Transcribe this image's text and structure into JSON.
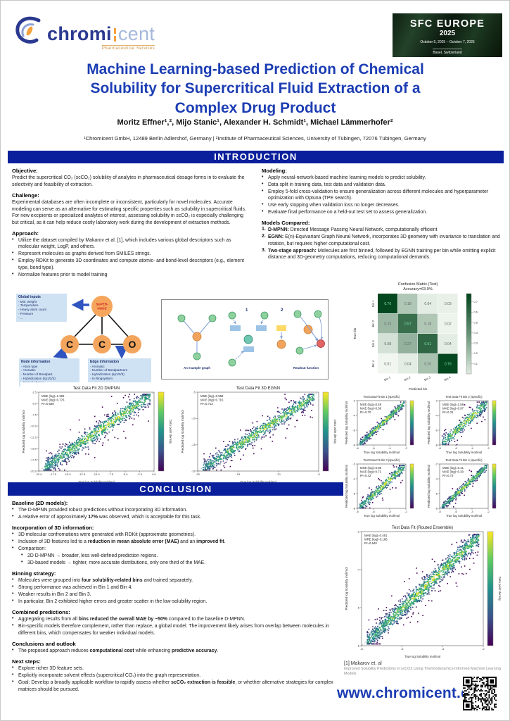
{
  "header": {
    "logo": {
      "brand_main": "chromi",
      "brand_accent": "cent",
      "tagline": "Pharmaceutical Services"
    },
    "badge": {
      "name": "SFC EUROPE",
      "year": "2025",
      "dates": "October 5, 2025 – October 7, 2025",
      "location": "Basel, Switzerland"
    },
    "title": "Machine Learning-based Prediction of Chemical Solubility for Supercritical Fluid Extraction of a Complex Drug Product",
    "authors": "Moritz Effner¹,², Mijo Stanic¹, Alexander H. Schmidt¹, Michael Lämmerhofer²",
    "affiliations": "¹Chromicent GmbH, 12489 Berlin Adlershof, Germany | ²Institute of Pharmaceutical Sciences, University of Tübingen, 72076 Tübingen, Germany"
  },
  "sections": {
    "introduction": "INTRODUCTION",
    "conclusion": "CONCLUSION"
  },
  "introduction": {
    "left": [
      {
        "heading": "Objective:",
        "paragraphs": [
          "Predict the supercritical CO₂ (scCO₂) solubility of analytes  in pharmaceutical dosage forms in to evaluate the selectivity and feasibility of extraction."
        ]
      },
      {
        "heading": "Challenge:",
        "paragraphs": [
          "Experimental databases are often incomplete or inconsistent, particularly for novel molecules. Accurate modeling can serve as an alternative for estimating specific properties such as solubility in supercritical fluids. For new excipients or specialized analytes of interest, assessing solubility in scCO₂ is especially challenging but critical, as it can help reduce costly laboratory work during the development of extraction methods."
        ]
      },
      {
        "heading": "Approach:",
        "bullets": [
          "Utilize the dataset compiled by Makarov et al. [1], which includes various global descriptors such as molecular weight, LogP, and others.",
          "Represent molecules as graphs derived from SMILES strings.",
          "Employ RDKit to generate 3D coordinates and compute atomic- and bond-level descriptors (e.g., element type, bond type).",
          "Normalize features prior to model training"
        ]
      }
    ],
    "right": [
      {
        "heading": "Modeling:",
        "bullets": [
          "Apply neural-network-based machine learning models to predict solubility.",
          "Data split in training data, test data and validation data.",
          "Employ 5-fold cross-validation to ensure generalization across different molecules and hyperparameter optimization with Optuna (TPE search).",
          "Use early stopping when validation loss no longer decreases.",
          "Evaluate final performance on a held-out test set to assess generalization."
        ]
      },
      {
        "heading": "Models Compared:",
        "ordered": true,
        "bullets": [
          "**D-MPNN:** Directed Message Passing Neural Network, computationally efficient",
          "**EGNN:** E(n)-Equivariant Graph Neural Network, incorporates 3D geometry with invariance to translation and rotation, but requires higher computational cost.",
          "**Two-stage approach:** Molecules are first binned, followed by EGNN training per bin while omitting explicit distance and 3D-geometry computations, reducing computational demands."
        ]
      }
    ]
  },
  "diagram": {
    "global_inputs": {
      "title": "Global inputs",
      "items": [
        "Mol. weight",
        "Temperature",
        "Heavy atom count",
        "Pressure",
        "..."
      ]
    },
    "supernode_line1": "SUPER-",
    "supernode_line2": "NODE",
    "atoms": [
      "C",
      "C",
      "O"
    ],
    "node_info": {
      "title": "Node information",
      "items": [
        "Atom type",
        "Aromatic",
        "Number of Bondpart.",
        "Hybridization (sp1/2/3)",
        "Formal charge"
      ]
    },
    "edge_info": {
      "title": "Edge information",
      "items": [
        "Aromatic",
        "Number of Bondpartners",
        "Hybridization (sp1/2/3)",
        "In Ringsystem"
      ]
    },
    "example_graph_caption": "An example graph",
    "readout_caption": "Readout function",
    "step1": "1",
    "step2": "2"
  },
  "conclusion": {
    "blocks": [
      {
        "heading": "Baseline (2D models):",
        "bullets": [
          "The D-MPNN provided robust predictions without incorporating 3D information.",
          "A relative error of approximately **17%** was observed, which is acceptable for this task."
        ]
      },
      {
        "heading": "Incorporation of 3D information:",
        "bullets": [
          "3D molecular confromations were generated with RDKit (approximate geometries).",
          "Inclusion of 3D features led to a **reduction in mean absolute error (MAE)** and an **improved fit**.",
          {
            "text": "Comparison:",
            "sub": [
              "2D D-MPNN → broader, less well-defined prediction regions.",
              "3D-based models → tighter, more accurate distributions, only one third of the MAE."
            ]
          }
        ]
      },
      {
        "heading": "Binning strategy:",
        "bullets": [
          "Molecules were grouped into **four solubility-related bins** and trained separately.",
          "Strong performance was achieved in Bin 1 and Bin 4.",
          "Weaker results in Bin 2 and Bin 3.",
          "In particular, Bin 2 exhibited higher errors and greater scatter in the low-solubility region."
        ]
      },
      {
        "heading": "Combined predictions:",
        "bullets": [
          "Aggregating results from all **bins reduced the overall MAE by ~50%** compared to the baseline D-MPNN.",
          "Bin-specific models therefore complement, rather than replace, a global model. The improvement likely arises from overlap between molecules in different bins, which compensates for weaker individual models."
        ]
      },
      {
        "heading": "Conclusions and outlook",
        "bullets": [
          "The proposed approach reduces **computational cost** while enhancing **predictive accuracy**."
        ]
      },
      {
        "heading": "Next steps:",
        "bullets": [
          "Explore richer 3D feature sets.",
          "Explicitly incorporate solvent effects (supercritical CO₂) into the graph representation.",
          "Goal: Develop a broadly applicable workflow to rapidly assess whether **scCO₂ extraction is feasible**, or whether alternative strategies for complex matrices should be pursued."
        ]
      }
    ]
  },
  "footer": {
    "reference_title": "[1] Makarov et. al",
    "reference_text": "Improved Solubility Predictions in scCO2 Using Thermodynamics-Informed Machine Learning Models",
    "website": "www.chromicent.de"
  },
  "colors": {
    "accent_blue": "#1c3db3",
    "bar_navy": "#0a1f9b",
    "logo_navy": "#2b3990",
    "logo_orange": "#f6a13c",
    "matrix_green": "#00441b"
  },
  "chart_data": {
    "confusion": {
      "type": "heatmap",
      "title": "Confusion Matrix (Test)",
      "subtitle": "Accuracy=63.9%",
      "xlabel": "Predicted bin",
      "ylabel": "True bin",
      "categories": [
        "Bin 1",
        "Bin 2",
        "Bin 3",
        "Bin 4"
      ],
      "values": [
        [
          0.76,
          0.18,
          0.04,
          0.03
        ],
        [
          0.24,
          0.57,
          0.18,
          0.02
        ],
        [
          0.08,
          0.27,
          0.61,
          0.04
        ],
        [
          0.01,
          0.04,
          0.2,
          0.76
        ]
      ],
      "vmax": 0.78,
      "colorbar_ticks": [
        0.1,
        0.2,
        0.3,
        0.4,
        0.5,
        0.6,
        0.7
      ]
    },
    "dmpnn": {
      "type": "scatter",
      "title": "Test Data Fit 2D DMPNN",
      "annotation": [
        "MSE (log)=1.366",
        "MAE (log)=0.776",
        "R²=0.636"
      ],
      "xlabel": "True log Solubility mol/mol",
      "ylabel": "Predicted log Solubility mol/mol",
      "colorbar_label": "Data point density",
      "xticks": [
        "-20.0",
        "-17.5",
        "-15.0",
        "-12.5",
        "-10.0",
        "-7.5",
        "-5.0",
        "-2.5",
        "0.0"
      ],
      "yticks": [
        "-20.0",
        "-17.5",
        "-15.0",
        "-12.5",
        "-10.0",
        "-7.5",
        "-5.0",
        "-2.5"
      ],
      "n": 1100,
      "spread": 0.15,
      "seed": 11
    },
    "egnn": {
      "type": "scatter",
      "title": "Test Data Fit 3D EGNN",
      "annotation": [
        "MSE (log)=0.958",
        "MAE (log)=0.715",
        "R²=0.712"
      ],
      "xlabel": "True log Solubility mol/mol",
      "ylabel": "Predicted log Solubility mol/mol",
      "colorbar_label": "Data point density",
      "xticks": [
        "-20",
        "-15",
        "-10",
        "-5"
      ],
      "yticks": [
        "-20",
        "-15",
        "-10",
        "-5"
      ],
      "n": 1000,
      "spread": 0.13,
      "seed": 22
    },
    "bin1": {
      "type": "scatter",
      "small": true,
      "title": "Test Data Fit Bin 1 (specific)",
      "annotation": [
        "MSE (log)=0.49",
        "MAE (log)=0.36",
        "R²=0.70"
      ],
      "xlabel": "True log Solubility mol/mol",
      "ylabel": "Predicted log Solubility mol/mol",
      "xticks": [
        "-8",
        "-6",
        "-4",
        "-2"
      ],
      "yticks": [
        "-8",
        "-6",
        "-4",
        "-2"
      ],
      "n": 400,
      "spread": 0.12,
      "seed": 31
    },
    "bin2": {
      "type": "scatter",
      "small": true,
      "title": "Test Data Fit Bin 2 (specific)",
      "annotation": [
        "MSE (log)=1.58",
        "MAE (log)=0.97",
        "R²=0.31"
      ],
      "xlabel": "True log Solubility mol/mol",
      "ylabel": "Predicted log Solubility mol/mol",
      "xticks": [
        "-8",
        "-6",
        "-4",
        "-2"
      ],
      "yticks": [
        "-8",
        "-6",
        "-4",
        "-2"
      ],
      "n": 380,
      "spread": 0.22,
      "seed": 32
    },
    "bin3": {
      "type": "scatter",
      "small": true,
      "title": "Test Data Fit Bin 3 (specific)",
      "annotation": [
        "MSE (log)=0.88",
        "MAE (log)=0.71",
        "R²=0.42"
      ],
      "xlabel": "True log Solubility mol/mol",
      "ylabel": "Predicted log Solubility mol/mol",
      "xticks": [
        "-8",
        "-6",
        "-4",
        "-2"
      ],
      "yticks": [
        "-8",
        "-6",
        "-4",
        "-2"
      ],
      "n": 400,
      "spread": 0.17,
      "seed": 33
    },
    "bin4": {
      "type": "scatter",
      "small": true,
      "title": "Test Data Fit Bin 4 (specific)",
      "annotation": [
        "MSE (log)=0.41",
        "MAE (log)=0.30",
        "R²=0.73"
      ],
      "xlabel": "True log Solubility mol/mol",
      "ylabel": "Predicted log Solubility mol/mol",
      "xticks": [
        "-8",
        "-6",
        "-4",
        "-2"
      ],
      "yticks": [
        "-8",
        "-6",
        "-4",
        "-2"
      ],
      "n": 420,
      "spread": 0.12,
      "seed": 34
    },
    "ensemble": {
      "type": "scatter",
      "title": "Test Data Fit (Routed Ensemble)",
      "annotation": [
        "MAE (log)=0.451",
        "MRE (log)=0.186",
        "R²=0.640"
      ],
      "xlabel": "True log Solubility mol/mol",
      "ylabel": "Predicted log Solubility mol/mol",
      "colorbar_label": "Data point density",
      "xticks": [
        "-8",
        "-6",
        "-4",
        "-2"
      ],
      "yticks": [
        "-8",
        "-6",
        "-4",
        "-2"
      ],
      "n": 1500,
      "spread": 0.12,
      "seed": 55
    }
  }
}
